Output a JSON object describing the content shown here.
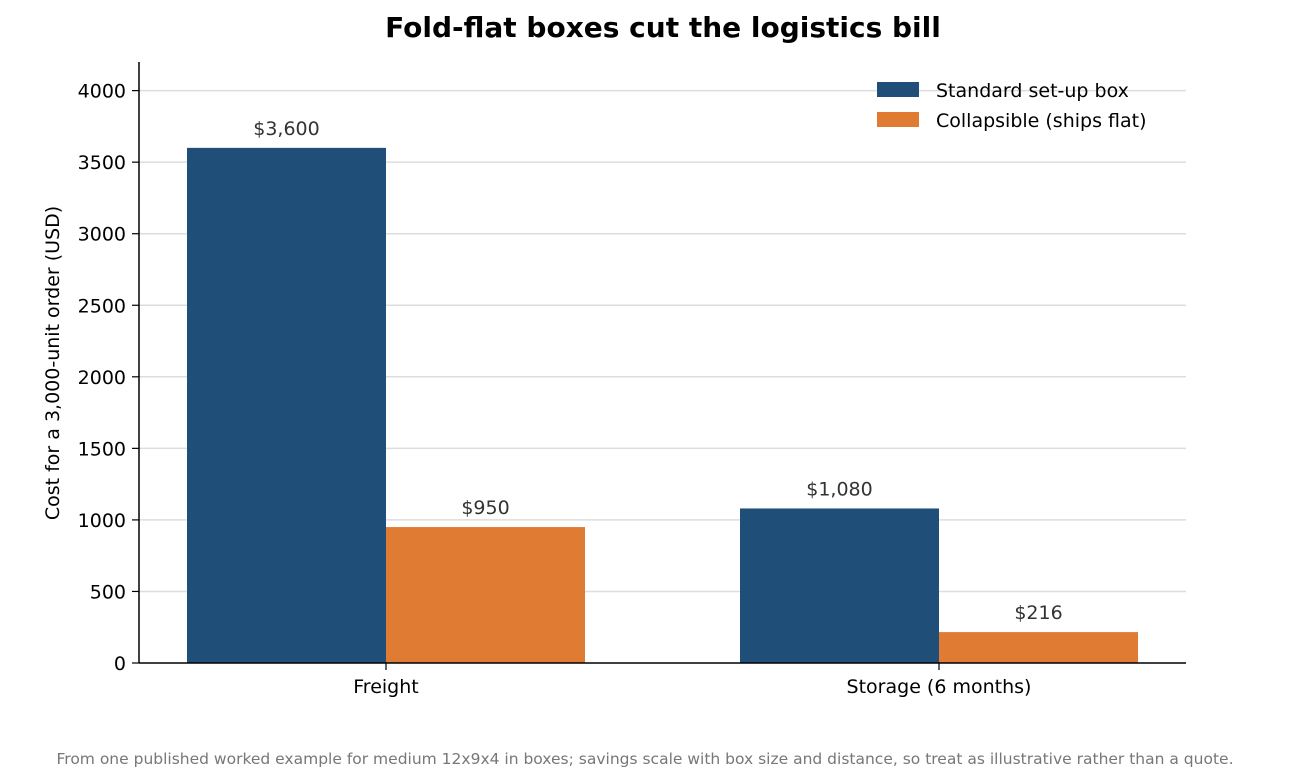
{
  "chart_data": {
    "type": "bar",
    "title": "Fold-flat boxes cut the logistics bill",
    "ylabel": "Cost for a 3,000-unit order (USD)",
    "xlabel": "",
    "categories": [
      "Freight",
      "Storage (6 months)"
    ],
    "series": [
      {
        "name": "Standard set-up box",
        "color": "#1f4e79",
        "values": [
          3600,
          1080
        ],
        "labels": [
          "$3,600",
          "$1,080"
        ]
      },
      {
        "name": "Collapsible (ships flat)",
        "color": "#e07b33",
        "values": [
          950,
          216
        ],
        "labels": [
          "$950",
          "$216"
        ]
      }
    ],
    "ylim": [
      0,
      4200
    ],
    "yticks": [
      0,
      500,
      1000,
      1500,
      2000,
      2500,
      3000,
      3500,
      4000
    ],
    "grid": "horizontal",
    "legend": "top-right",
    "footnote": "From one published worked example for medium 12x9x4 in boxes; savings scale with box size and distance, so treat as illustrative rather than a quote."
  }
}
